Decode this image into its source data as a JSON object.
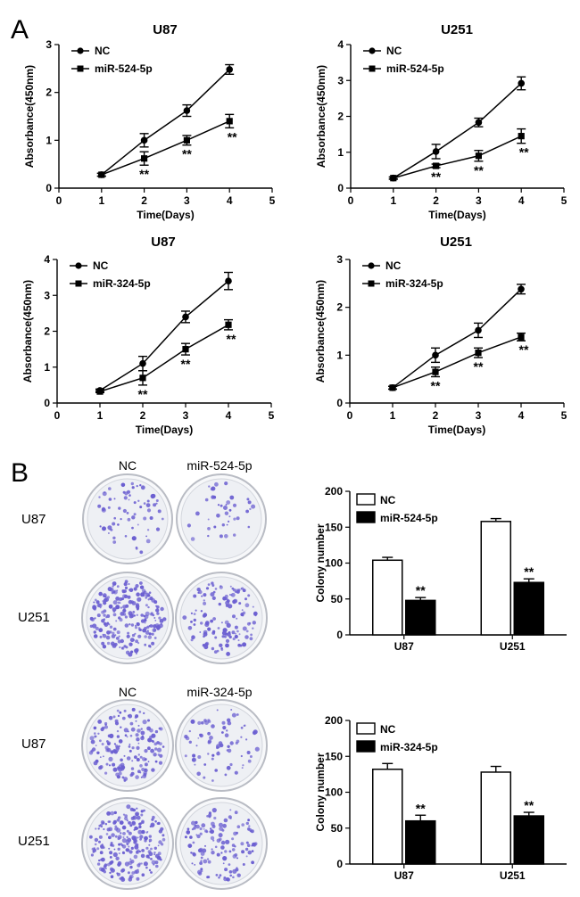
{
  "panel_labels": {
    "a": "A",
    "b": "B"
  },
  "colony_blocks": [
    {
      "col_nc": "NC",
      "col_mir": "miR-524-5p",
      "rows": [
        "U87",
        "U251"
      ]
    },
    {
      "col_nc": "NC",
      "col_mir": "miR-324-5p",
      "rows": [
        "U87",
        "U251"
      ]
    }
  ],
  "colors": {
    "plate_dot": "#6b5fd1",
    "plate_fill": "#eef0f4",
    "plate_rim": "#b9bcc4",
    "ink": "#000000"
  },
  "chart_data": [
    {
      "type": "line",
      "title": "U87",
      "xlabel": "Time(Days)",
      "ylabel": "Absorbance(450nm)",
      "xlim": [
        0,
        5
      ],
      "ylim": [
        0,
        3
      ],
      "xticks": [
        "0",
        "1",
        "2",
        "3",
        "4",
        "5"
      ],
      "yticks": [
        "0",
        "1",
        "2",
        "3"
      ],
      "x": [
        1,
        2,
        3,
        4
      ],
      "series": [
        {
          "name": "NC",
          "marker": "circle",
          "values": [
            0.28,
            1.0,
            1.62,
            2.48
          ],
          "errors": [
            0.03,
            0.14,
            0.12,
            0.1
          ]
        },
        {
          "name": "miR-524-5p",
          "marker": "square",
          "values": [
            0.28,
            0.62,
            1.0,
            1.4
          ],
          "errors": [
            0.03,
            0.14,
            0.1,
            0.14
          ]
        }
      ],
      "annotations": [
        "",
        "**",
        "**",
        "**"
      ]
    },
    {
      "type": "line",
      "title": "U251",
      "xlabel": "Time(Days)",
      "ylabel": "Absorbance(450nm)",
      "xlim": [
        0,
        5
      ],
      "ylim": [
        0,
        4
      ],
      "xticks": [
        "0",
        "1",
        "2",
        "3",
        "4",
        "5"
      ],
      "yticks": [
        "0",
        "1",
        "2",
        "3",
        "4"
      ],
      "x": [
        1,
        2,
        3,
        4
      ],
      "series": [
        {
          "name": "NC",
          "marker": "circle",
          "values": [
            0.28,
            1.02,
            1.83,
            2.92
          ],
          "errors": [
            0.03,
            0.2,
            0.12,
            0.18
          ]
        },
        {
          "name": "miR-524-5p",
          "marker": "square",
          "values": [
            0.28,
            0.62,
            0.9,
            1.45
          ],
          "errors": [
            0.03,
            0.05,
            0.15,
            0.2
          ]
        }
      ],
      "annotations": [
        "",
        "**",
        "**",
        "**"
      ]
    },
    {
      "type": "line",
      "title": "U87",
      "xlabel": "Time(Days)",
      "ylabel": "Absorbance(450nm)",
      "xlim": [
        0,
        5
      ],
      "ylim": [
        0,
        4
      ],
      "xticks": [
        "0",
        "1",
        "2",
        "3",
        "4",
        "5"
      ],
      "yticks": [
        "0",
        "1",
        "2",
        "3",
        "4"
      ],
      "x": [
        1,
        2,
        3,
        4
      ],
      "series": [
        {
          "name": "NC",
          "marker": "circle",
          "values": [
            0.35,
            1.1,
            2.4,
            3.4
          ],
          "errors": [
            0.04,
            0.2,
            0.16,
            0.24
          ]
        },
        {
          "name": "miR-324-5p",
          "marker": "square",
          "values": [
            0.32,
            0.7,
            1.5,
            2.18
          ],
          "errors": [
            0.03,
            0.2,
            0.16,
            0.14
          ]
        }
      ],
      "annotations": [
        "",
        "**",
        "**",
        "**"
      ]
    },
    {
      "type": "line",
      "title": "U251",
      "xlabel": "Time(Days)",
      "ylabel": "Absorbance(450nm)",
      "xlim": [
        0,
        5
      ],
      "ylim": [
        0,
        3
      ],
      "xticks": [
        "0",
        "1",
        "2",
        "3",
        "4",
        "5"
      ],
      "yticks": [
        "0",
        "1",
        "2",
        "3"
      ],
      "x": [
        1,
        2,
        3,
        4
      ],
      "series": [
        {
          "name": "NC",
          "marker": "circle",
          "values": [
            0.32,
            1.0,
            1.52,
            2.38
          ],
          "errors": [
            0.03,
            0.15,
            0.15,
            0.1
          ]
        },
        {
          "name": "miR-324-5p",
          "marker": "square",
          "values": [
            0.32,
            0.65,
            1.05,
            1.38
          ],
          "errors": [
            0.03,
            0.1,
            0.1,
            0.08
          ]
        }
      ],
      "annotations": [
        "",
        "**",
        "**",
        "**"
      ]
    },
    {
      "type": "bar",
      "title": "",
      "xlabel": "",
      "ylabel": "Colony number",
      "ylim": [
        0,
        200
      ],
      "yticks": [
        "0",
        "50",
        "100",
        "150",
        "200"
      ],
      "categories": [
        "U87",
        "U251"
      ],
      "series": [
        {
          "name": "NC",
          "fill": "#ffffff",
          "values": [
            104,
            158
          ],
          "errors": [
            4,
            4
          ]
        },
        {
          "name": "miR-524-5p",
          "fill": "#000000",
          "values": [
            48,
            73
          ],
          "errors": [
            4,
            5
          ]
        }
      ],
      "annotations": [
        "**",
        "**"
      ]
    },
    {
      "type": "bar",
      "title": "",
      "xlabel": "",
      "ylabel": "Colony number",
      "ylim": [
        0,
        200
      ],
      "yticks": [
        "0",
        "50",
        "100",
        "150",
        "200"
      ],
      "categories": [
        "U87",
        "U251"
      ],
      "series": [
        {
          "name": "NC",
          "fill": "#ffffff",
          "values": [
            132,
            128
          ],
          "errors": [
            8,
            8
          ]
        },
        {
          "name": "miR-324-5p",
          "fill": "#000000",
          "values": [
            60,
            67
          ],
          "errors": [
            8,
            5
          ]
        }
      ],
      "annotations": [
        "**",
        "**"
      ]
    }
  ]
}
